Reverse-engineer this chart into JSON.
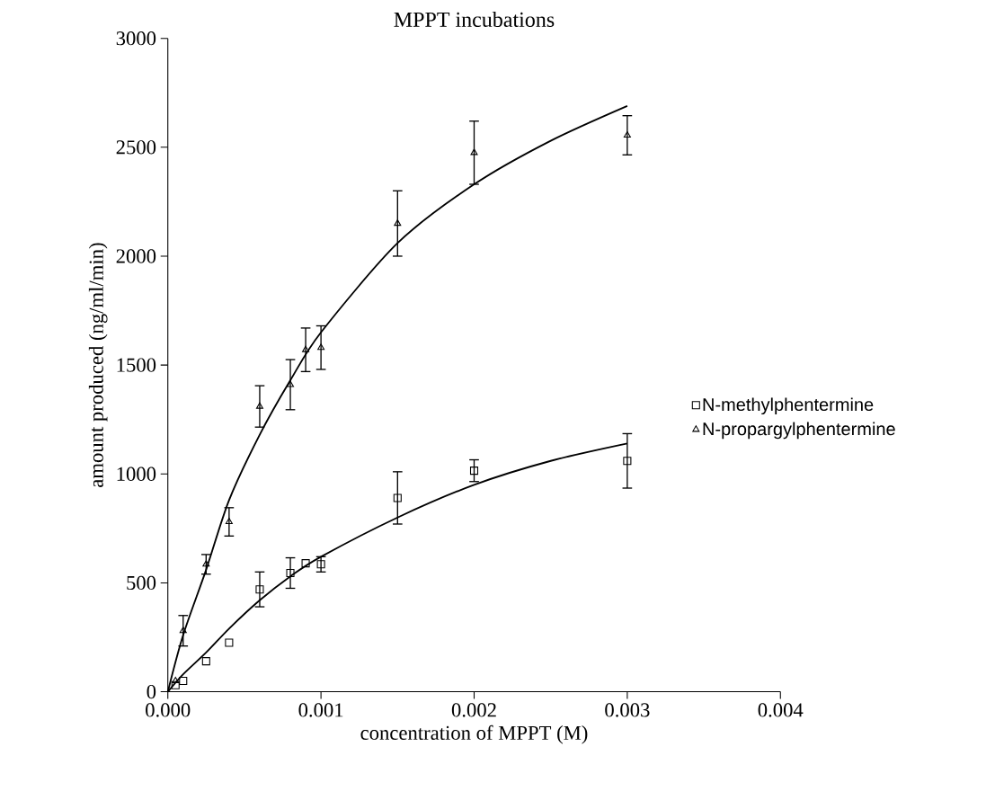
{
  "chart_data": {
    "type": "scatter",
    "title": "MPPT incubations",
    "xlabel": "concentration of MPPT (M)",
    "ylabel": "amount produced (ng/ml/min)",
    "xlim": [
      0,
      0.004
    ],
    "ylim": [
      0,
      3000
    ],
    "xticks": [
      {
        "value": 0,
        "label": "0.000"
      },
      {
        "value": 0.001,
        "label": "0.001"
      },
      {
        "value": 0.002,
        "label": "0.002"
      },
      {
        "value": 0.003,
        "label": "0.003"
      },
      {
        "value": 0.004,
        "label": "0.004"
      }
    ],
    "yticks": [
      0,
      500,
      1000,
      1500,
      2000,
      2500,
      3000
    ],
    "grid": false,
    "legend": "right",
    "series": [
      {
        "name": "N-methylphentermine",
        "marker": "square",
        "color": "#000000",
        "x": [
          5e-05,
          0.0001,
          0.00025,
          0.0004,
          0.0006,
          0.0008,
          0.0009,
          0.001,
          0.0015,
          0.002,
          0.003
        ],
        "values": [
          30,
          50,
          140,
          225,
          470,
          545,
          590,
          585,
          890,
          1015,
          1060
        ],
        "errors": [
          null,
          null,
          null,
          null,
          80,
          70,
          null,
          35,
          120,
          50,
          125
        ]
      },
      {
        "name": "N-propargylphentermine",
        "marker": "triangle",
        "color": "#000000",
        "x": [
          5e-05,
          0.0001,
          0.00025,
          0.0004,
          0.0006,
          0.0008,
          0.0009,
          0.001,
          0.0015,
          0.002,
          0.003
        ],
        "values": [
          50,
          280,
          585,
          780,
          1310,
          1410,
          1570,
          1580,
          2150,
          2475,
          2555
        ],
        "errors": [
          null,
          70,
          45,
          65,
          95,
          115,
          100,
          100,
          150,
          145,
          90
        ]
      },
      {
        "type": "line",
        "marker": "none",
        "line_style": "solid",
        "color": "#000000",
        "x": [
          0,
          0.0001,
          0.00025,
          0.0004,
          0.0006,
          0.0008,
          0.001,
          0.0015,
          0.002,
          0.0025,
          0.003
        ],
        "values": [
          0,
          80,
          180,
          290,
          420,
          530,
          620,
          800,
          950,
          1060,
          1140
        ]
      },
      {
        "type": "line",
        "marker": "none",
        "line_style": "solid",
        "color": "#000000",
        "x": [
          0,
          0.0001,
          0.00025,
          0.0004,
          0.0006,
          0.0008,
          0.001,
          0.0015,
          0.002,
          0.0025,
          0.003
        ],
        "values": [
          0,
          260,
          560,
          880,
          1180,
          1430,
          1650,
          2060,
          2330,
          2530,
          2690
        ]
      }
    ]
  }
}
